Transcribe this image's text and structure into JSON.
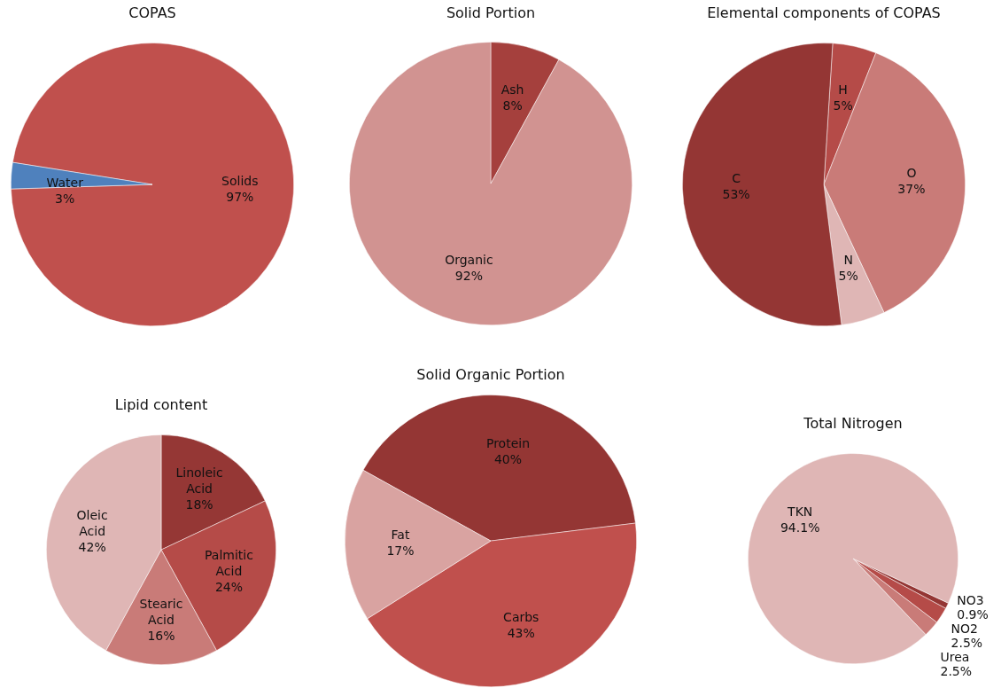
{
  "chart_data": [
    {
      "type": "pie",
      "title": "COPAS",
      "categories": [
        "Solids",
        "Water"
      ],
      "values": [
        97,
        3
      ],
      "colors": [
        "#c0504d",
        "#4f81bd"
      ],
      "value_labels": [
        "97%",
        "3%"
      ]
    },
    {
      "type": "pie",
      "title": "Solid Portion",
      "categories": [
        "Ash",
        "Organic"
      ],
      "values": [
        8,
        92
      ],
      "colors": [
        "#a5403d",
        "#d19391"
      ],
      "value_labels": [
        "8%",
        "92%"
      ]
    },
    {
      "type": "pie",
      "title": "Elemental components of COPAS",
      "categories": [
        "H",
        "O",
        "N",
        "C"
      ],
      "values": [
        5,
        37,
        5,
        53
      ],
      "colors": [
        "#b54b48",
        "#c97b78",
        "#dfb6b5",
        "#943634"
      ],
      "value_labels": [
        "5%",
        "37%",
        "5%",
        "53%"
      ]
    },
    {
      "type": "pie",
      "title": "Lipid content",
      "categories": [
        "Linoleic Acid",
        "Palmitic Acid",
        "Stearic Acid",
        "Oleic Acid"
      ],
      "values": [
        18,
        24,
        16,
        42
      ],
      "colors": [
        "#953735",
        "#b54b48",
        "#c97b78",
        "#dfb6b5"
      ],
      "value_labels": [
        "18%",
        "24%",
        "16%",
        "42%"
      ]
    },
    {
      "type": "pie",
      "title": "Solid Organic Portion",
      "categories": [
        "Protein",
        "Carbs",
        "Fat"
      ],
      "values": [
        40,
        43,
        17
      ],
      "colors": [
        "#943634",
        "#c0504d",
        "#d9a3a1"
      ],
      "value_labels": [
        "40%",
        "43%",
        "17%"
      ]
    },
    {
      "type": "pie",
      "title": "Total Nitrogen",
      "categories": [
        "NO3",
        "NO2",
        "Urea",
        "TKN"
      ],
      "values": [
        0.9,
        2.5,
        2.5,
        94.1
      ],
      "colors": [
        "#943634",
        "#b54b48",
        "#c97b78",
        "#dfb6b5"
      ],
      "value_labels": [
        "0.9%",
        "2.5%",
        "2.5%",
        "94.1%"
      ]
    }
  ]
}
